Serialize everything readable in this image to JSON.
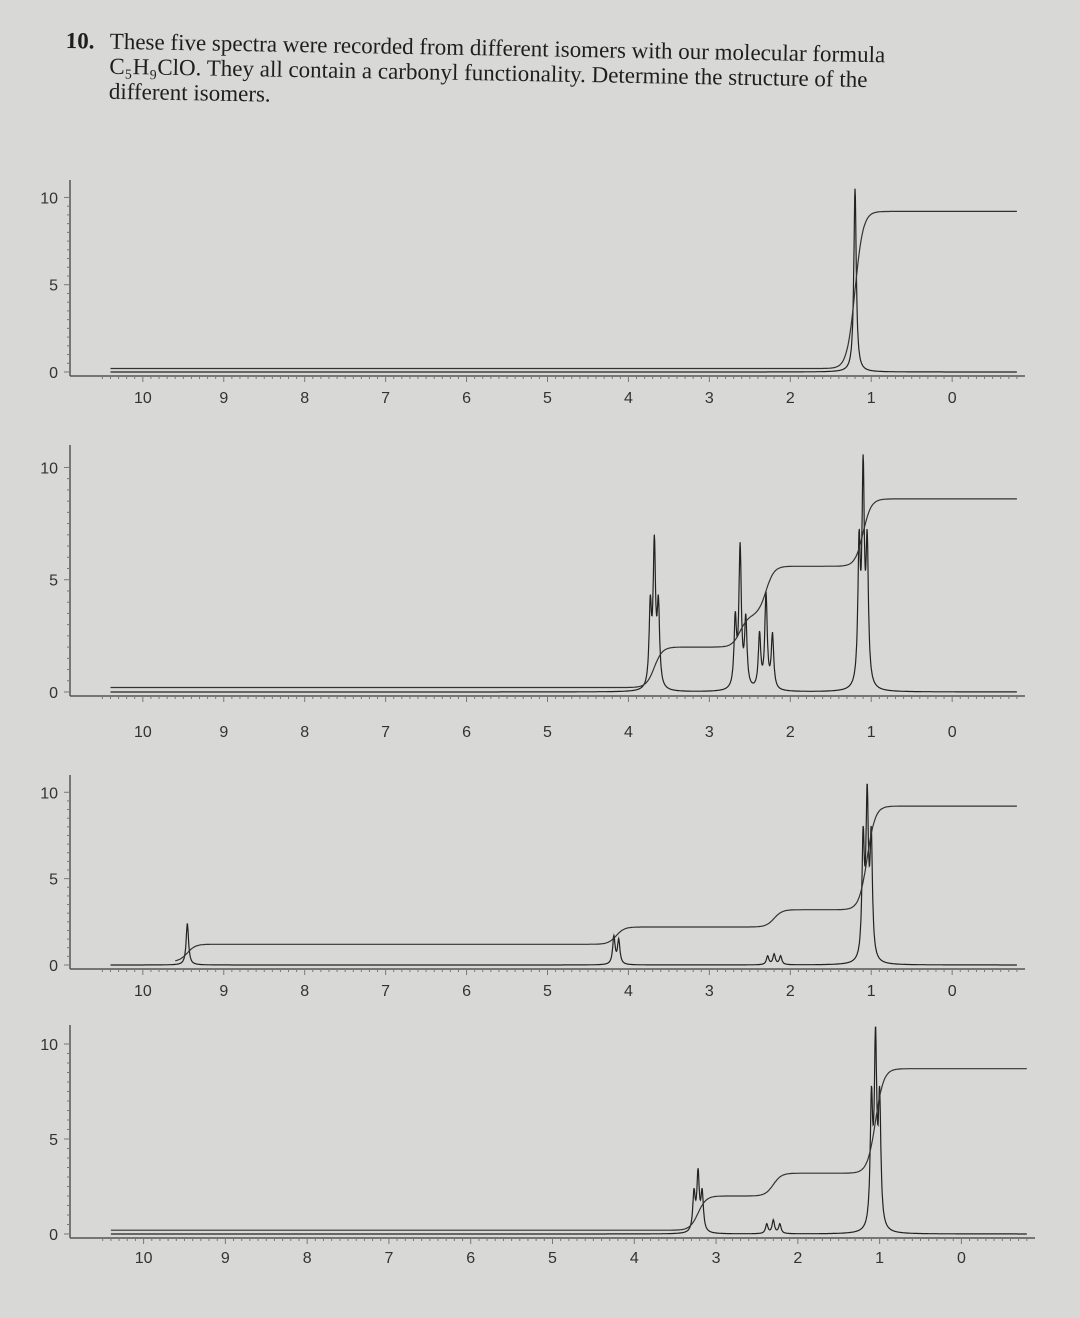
{
  "question": {
    "number": "10.",
    "line1": "These five spectra were recorded from different isomers with our molecular formula",
    "formula": "C₅H₉ClO.",
    "line2": " They all contain a carbonyl functionality. Determine the structure of the",
    "line3": "different isomers."
  },
  "chart_data": [
    {
      "type": "line",
      "x_axis": {
        "range": [
          10.9,
          -0.9
        ],
        "reversed": true,
        "ticks": [
          "10",
          "9",
          "8",
          "7",
          "6",
          "5",
          "4",
          "3",
          "2",
          "1",
          "0"
        ]
      },
      "y_axis": {
        "range": [
          0,
          11
        ],
        "ticks": [
          "10",
          "5",
          "0"
        ]
      },
      "peaks": [
        {
          "ppm": 1.2,
          "height": 10.5
        }
      ],
      "integral": [
        {
          "ppm": 1.2,
          "step": 9
        }
      ]
    },
    {
      "type": "line",
      "x_axis": {
        "range": [
          10.9,
          -0.9
        ],
        "reversed": true,
        "ticks": [
          "10",
          "9",
          "8",
          "7",
          "6",
          "5",
          "4",
          "3",
          "2",
          "1",
          "0"
        ]
      },
      "y_axis": {
        "range": [
          0,
          11
        ],
        "ticks": [
          "10",
          "5",
          "0"
        ]
      },
      "peaks": [
        {
          "ppm": 3.68,
          "height": 6.2
        },
        {
          "ppm": 3.63,
          "height": 3.5
        },
        {
          "ppm": 3.73,
          "height": 3.5
        },
        {
          "ppm": 2.62,
          "height": 6.2
        },
        {
          "ppm": 2.55,
          "height": 3.0
        },
        {
          "ppm": 2.68,
          "height": 3.0
        },
        {
          "ppm": 2.3,
          "height": 4.2
        },
        {
          "ppm": 2.22,
          "height": 2.4
        },
        {
          "ppm": 2.38,
          "height": 2.4
        },
        {
          "ppm": 1.1,
          "height": 9.2
        },
        {
          "ppm": 1.05,
          "height": 6.0
        },
        {
          "ppm": 1.15,
          "height": 6.0
        }
      ],
      "integral": [
        {
          "ppm": 3.68,
          "step": 1.8
        },
        {
          "ppm": 2.62,
          "step": 1.4
        },
        {
          "ppm": 2.3,
          "step": 2.2
        },
        {
          "ppm": 1.1,
          "step": 3.0
        }
      ]
    },
    {
      "type": "line",
      "x_axis": {
        "range": [
          10.9,
          -0.9
        ],
        "reversed": true,
        "ticks": [
          "10",
          "9",
          "8",
          "7",
          "6",
          "5",
          "4",
          "3",
          "2",
          "1",
          "0"
        ]
      },
      "y_axis": {
        "range": [
          0,
          11
        ],
        "ticks": [
          "10",
          "5",
          "0"
        ]
      },
      "peaks": [
        {
          "ppm": 9.45,
          "height": 2.4
        },
        {
          "ppm": 4.18,
          "height": 1.6
        },
        {
          "ppm": 4.12,
          "height": 1.4
        },
        {
          "ppm": 2.2,
          "height": 0.6
        },
        {
          "ppm": 2.12,
          "height": 0.5
        },
        {
          "ppm": 2.28,
          "height": 0.5
        },
        {
          "ppm": 1.05,
          "height": 9.0
        },
        {
          "ppm": 1.0,
          "height": 6.8
        },
        {
          "ppm": 1.1,
          "height": 6.8
        }
      ],
      "integral": [
        {
          "ppm": 9.45,
          "step": 1.0
        },
        {
          "ppm": 4.15,
          "step": 1.0
        },
        {
          "ppm": 2.2,
          "step": 1.0
        },
        {
          "ppm": 1.05,
          "step": 6.0
        }
      ]
    },
    {
      "type": "line",
      "x_axis": {
        "range": [
          10.9,
          -0.9
        ],
        "reversed": true,
        "ticks": [
          "10",
          "9",
          "8",
          "7",
          "6",
          "5",
          "4",
          "3",
          "2",
          "1",
          "0"
        ]
      },
      "y_axis": {
        "range": [
          0,
          11
        ],
        "ticks": [
          "10",
          "5",
          "0"
        ]
      },
      "peaks": [
        {
          "ppm": 3.22,
          "height": 3.0
        },
        {
          "ppm": 3.17,
          "height": 2.0
        },
        {
          "ppm": 3.27,
          "height": 2.0
        },
        {
          "ppm": 2.3,
          "height": 0.7
        },
        {
          "ppm": 2.22,
          "height": 0.5
        },
        {
          "ppm": 2.38,
          "height": 0.5
        },
        {
          "ppm": 1.05,
          "height": 9.5
        },
        {
          "ppm": 1.0,
          "height": 6.5
        },
        {
          "ppm": 1.1,
          "height": 6.5
        }
      ],
      "integral": [
        {
          "ppm": 3.22,
          "step": 1.8
        },
        {
          "ppm": 2.3,
          "step": 1.2
        },
        {
          "ppm": 1.05,
          "step": 5.5
        }
      ]
    }
  ]
}
